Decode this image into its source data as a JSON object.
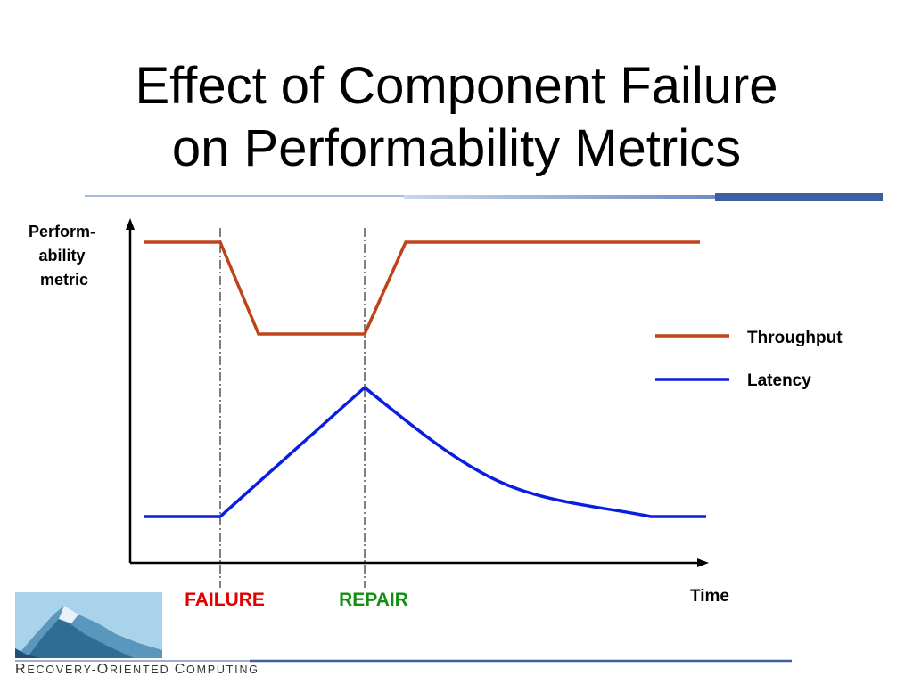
{
  "slide": {
    "title_lines": [
      "Effect of Component Failure",
      "on Performability Metrics"
    ]
  },
  "diagram": {
    "y_axis_label_lines": [
      "Perform-",
      "ability",
      "metric"
    ],
    "x_axis_label": "Time",
    "event_labels": {
      "failure": "FAILURE",
      "repair": "REPAIR"
    },
    "legend": [
      {
        "name": "Throughput",
        "color": "#c0421a"
      },
      {
        "name": "Latency",
        "color": "#0a1ee0"
      }
    ]
  },
  "footer": {
    "branding_text": "Recovery-Oriented Computing"
  },
  "colors": {
    "throughput": "#c0421a",
    "latency": "#0a1ee0",
    "failure_label": "#e00000",
    "repair_label": "#109010",
    "accent_bar": "#3f5f9f"
  }
}
